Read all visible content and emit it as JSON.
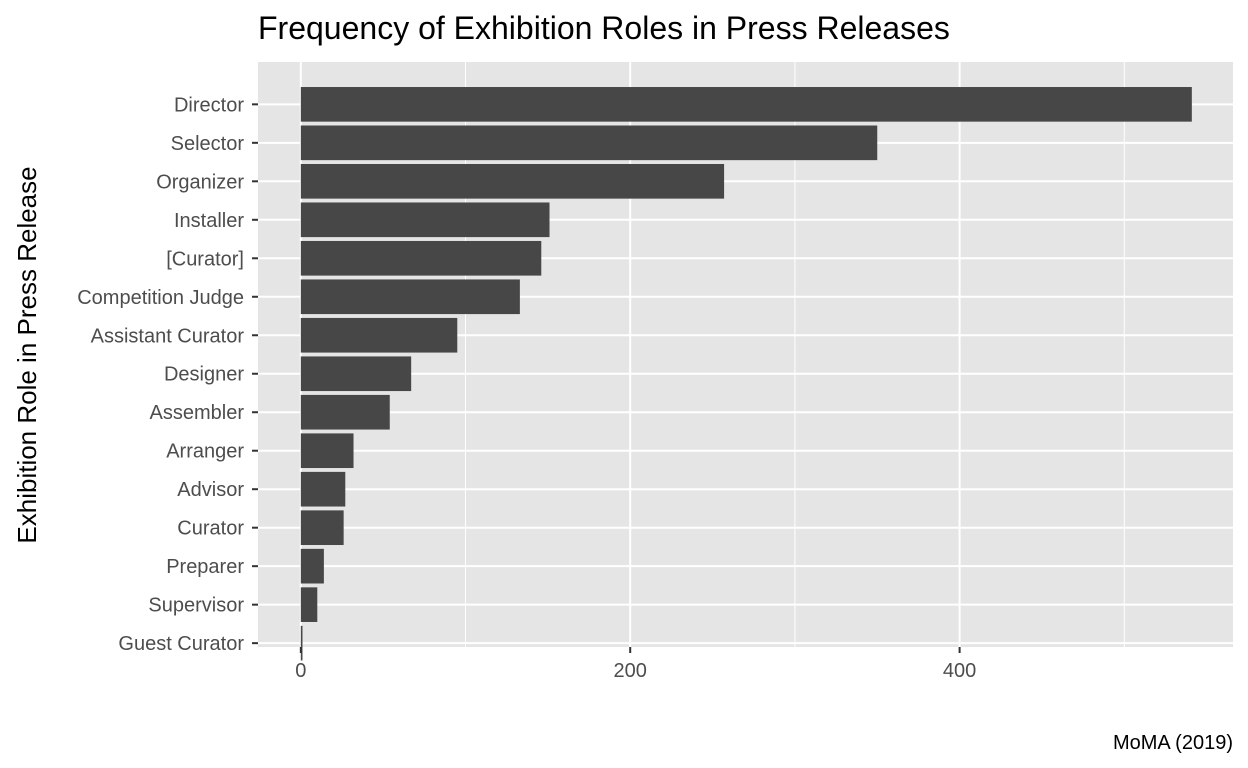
{
  "chart_data": {
    "type": "bar",
    "orientation": "horizontal",
    "title": "Frequency of Exhibition Roles in Press Releases",
    "xlabel": "",
    "ylabel": "Exhibition Role in Press Release",
    "caption": "MoMA (2019)",
    "categories": [
      "Director",
      "Selector",
      "Organizer",
      "Installer",
      "[Curator]",
      "Competition Judge",
      "Assistant Curator",
      "Designer",
      "Assembler",
      "Arranger",
      "Advisor",
      "Curator",
      "Preparer",
      "Supervisor",
      "Guest Curator"
    ],
    "values": [
      541,
      350,
      257,
      151,
      146,
      133,
      95,
      67,
      54,
      32,
      27,
      26,
      14,
      10,
      1
    ],
    "xlim": [
      -26,
      566
    ],
    "x_ticks": [
      0,
      200,
      400
    ],
    "x_tick_labels": [
      "0",
      "200",
      "400"
    ],
    "grid": true,
    "bar_color": "#474747",
    "panel_background": "#e5e5e5",
    "grid_color": "#ffffff"
  }
}
